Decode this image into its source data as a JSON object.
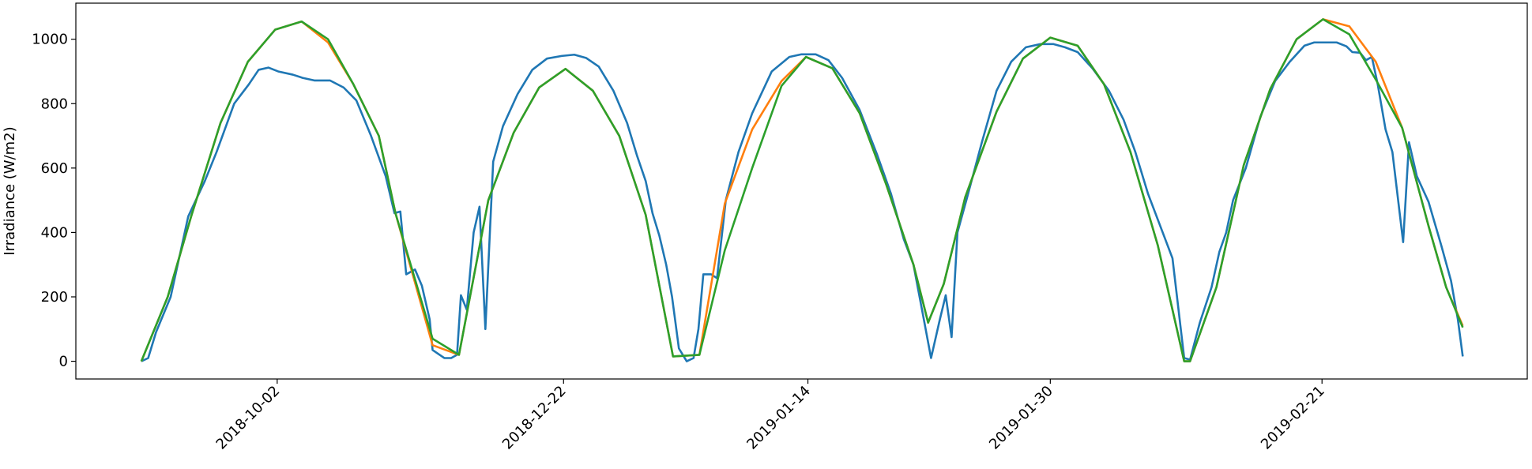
{
  "chart_data": {
    "type": "line",
    "y_label": "Irradiance (W/m2)",
    "xlim": [
      -6.7,
      141.8
    ],
    "xticks": [
      {
        "value": 13.9,
        "label": "2018-10-02"
      },
      {
        "value": 43.2,
        "label": "2018-12-22"
      },
      {
        "value": 68.2,
        "label": "2019-01-14"
      },
      {
        "value": 93,
        "label": "2019-01-30"
      },
      {
        "value": 120.8,
        "label": "2019-02-21"
      }
    ],
    "ylim": [
      -55,
      1112
    ],
    "yticks": [
      0,
      200,
      400,
      600,
      800,
      1000
    ],
    "grid": false,
    "series": [
      {
        "color": "#1f77b4",
        "x": [
          0,
          0.7,
          1.5,
          3,
          4.8,
          6.5,
          7.7,
          9.5,
          11,
          12,
          13,
          14,
          15.5,
          16.5,
          17.7,
          19.3,
          20.7,
          22,
          23.5,
          25,
          25.9,
          26.5,
          27.1,
          28,
          28.7,
          29.5,
          29.8,
          31,
          31.7,
          32.3,
          32.7,
          33.3,
          34,
          34.6,
          35.2,
          36,
          37,
          38.5,
          40,
          41.5,
          43,
          44.3,
          45.5,
          46.8,
          48.3,
          49.7,
          50.7,
          51.6,
          52.3,
          53,
          53.7,
          54.3,
          55,
          55.8,
          56.5,
          57,
          57.5,
          58.3,
          58.9,
          59.8,
          61.1,
          62.5,
          64.5,
          66.3,
          67.5,
          69,
          70.3,
          71.7,
          73.5,
          75.3,
          76.7,
          78,
          79,
          80,
          80.8,
          81.7,
          82.3,
          82.9,
          83.5,
          84.5,
          86,
          87.5,
          89,
          90.5,
          92,
          93.3,
          94.5,
          95.8,
          97.3,
          99,
          100.5,
          101.7,
          103,
          104.5,
          105.5,
          106.7,
          107.3,
          108.3,
          109.5,
          110.3,
          111,
          111.7,
          113,
          114.5,
          116,
          117.5,
          119,
          120,
          122.3,
          123.3,
          123.9,
          124.7,
          125.3,
          125.9,
          126.5,
          127.3,
          128,
          129.1,
          129.7,
          130.5,
          131.7,
          133,
          134,
          134.7,
          135.2
        ],
        "values": [
          0,
          10,
          90,
          200,
          450,
          560,
          650,
          800,
          860,
          905,
          912,
          900,
          890,
          880,
          872,
          872,
          850,
          810,
          700,
          575,
          460,
          465,
          270,
          285,
          235,
          130,
          35,
          10,
          10,
          20,
          205,
          160,
          400,
          480,
          100,
          620,
          730,
          830,
          905,
          940,
          948,
          952,
          942,
          915,
          840,
          740,
          640,
          560,
          460,
          390,
          300,
          200,
          40,
          0,
          10,
          100,
          270,
          270,
          258,
          500,
          650,
          770,
          900,
          945,
          953,
          953,
          935,
          880,
          780,
          640,
          520,
          380,
          300,
          140,
          10,
          130,
          205,
          75,
          400,
          510,
          680,
          840,
          930,
          975,
          985,
          985,
          975,
          960,
          910,
          840,
          750,
          650,
          520,
          400,
          320,
          10,
          5,
          120,
          230,
          340,
          400,
          500,
          600,
          760,
          870,
          930,
          980,
          990,
          990,
          978,
          960,
          958,
          935,
          945,
          860,
          720,
          650,
          370,
          680,
          575,
          495,
          360,
          250,
          130,
          15
        ]
      },
      {
        "color": "#ff7f0e",
        "x": [
          0,
          2.7,
          5.1,
          8.1,
          10.9,
          13.7,
          16.4,
          19.1,
          21.7,
          24.3,
          26,
          29.8,
          32.5,
          35.5,
          38.1,
          40.7,
          43.4,
          46.2,
          48.9,
          51.6,
          54.4,
          57.1,
          59.7,
          62.5,
          65.5,
          68,
          70.7,
          73.5,
          76.2,
          79,
          80.5,
          82.1,
          84.3,
          87.5,
          90.2,
          93,
          95.8,
          98.5,
          101.2,
          104,
          106.7,
          107.3,
          110,
          112.8,
          115.5,
          118.2,
          120.9,
          123.6,
          126.3,
          129,
          131.7,
          133.5,
          135.2
        ],
        "values": [
          0,
          200,
          450,
          740,
          930,
          1030,
          1055,
          990,
          860,
          700,
          460,
          50,
          20,
          500,
          710,
          850,
          908,
          840,
          700,
          455,
          15,
          20,
          490,
          720,
          870,
          945,
          910,
          770,
          550,
          300,
          120,
          240,
          510,
          775,
          940,
          1005,
          980,
          860,
          650,
          360,
          0,
          0,
          230,
          610,
          845,
          1000,
          1062,
          1040,
          930,
          725,
          420,
          230,
          110
        ]
      },
      {
        "color": "#2ca02c",
        "x": [
          0,
          2.7,
          5.1,
          8.1,
          10.9,
          13.7,
          16.4,
          19.1,
          21.7,
          24.3,
          26,
          29.8,
          32.5,
          35.5,
          38.1,
          40.7,
          43.4,
          46.2,
          48.9,
          51.6,
          54.4,
          57.1,
          59.7,
          62.5,
          65.5,
          68,
          70.7,
          73.5,
          76.2,
          79,
          80.5,
          82.1,
          84.3,
          87.5,
          90.2,
          93,
          95.8,
          98.5,
          101.2,
          104,
          106.7,
          107.3,
          110,
          112.8,
          115.5,
          118.2,
          120.9,
          123.6,
          126.3,
          129,
          131.7,
          133.5,
          135.2
        ],
        "values": [
          0,
          200,
          450,
          740,
          930,
          1030,
          1055,
          1000,
          860,
          700,
          460,
          70,
          20,
          500,
          710,
          850,
          908,
          840,
          700,
          455,
          15,
          20,
          345,
          600,
          855,
          945,
          910,
          770,
          550,
          300,
          120,
          240,
          510,
          775,
          940,
          1005,
          980,
          860,
          650,
          360,
          0,
          0,
          230,
          610,
          845,
          1000,
          1062,
          1015,
          875,
          725,
          420,
          230,
          105
        ]
      }
    ]
  }
}
